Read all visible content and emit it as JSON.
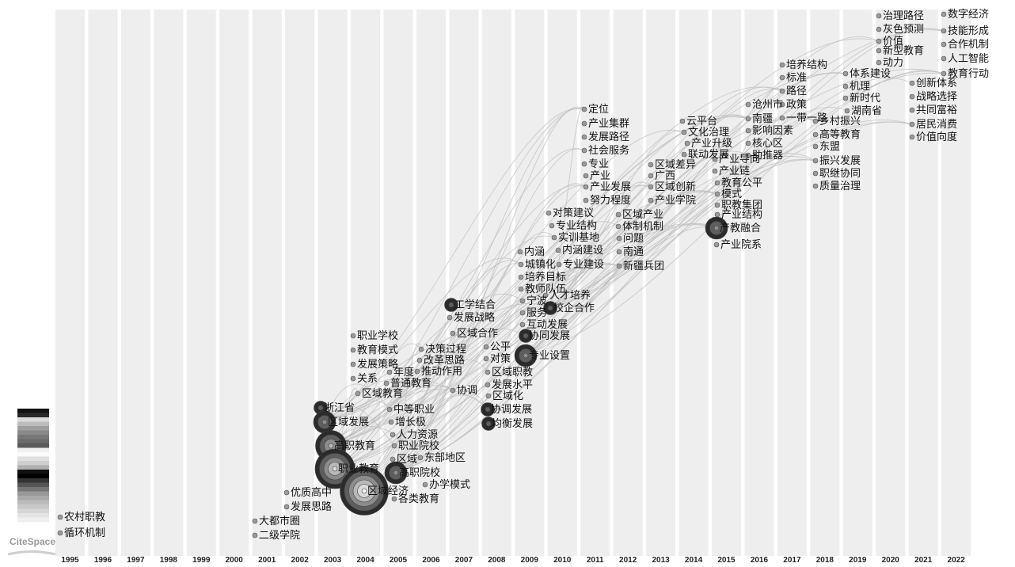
{
  "legend": {
    "brand": "CiteSpace"
  },
  "years": [
    "1995",
    "1996",
    "1997",
    "1998",
    "1999",
    "2000",
    "2001",
    "2002",
    "2003",
    "2004",
    "2005",
    "2006",
    "2007",
    "2008",
    "2009",
    "2010",
    "2011",
    "2012",
    "2013",
    "2014",
    "2015",
    "2016",
    "2017",
    "2018",
    "2019",
    "2020",
    "2021",
    "2022"
  ],
  "keywords": [
    {
      "label": "农村职教",
      "year": "1995",
      "size": 1
    },
    {
      "label": "循环机制",
      "year": "1995",
      "size": 1
    },
    {
      "label": "大都市圈",
      "year": "2001",
      "size": 1
    },
    {
      "label": "二级学院",
      "year": "2001",
      "size": 1
    },
    {
      "label": "优质高中",
      "year": "2002",
      "size": 1
    },
    {
      "label": "发展思路",
      "year": "2002",
      "size": 1
    },
    {
      "label": "浙江省",
      "year": "2003",
      "size": 2
    },
    {
      "label": "区域发展",
      "year": "2003",
      "size": 3
    },
    {
      "label": "高职教育",
      "year": "2003",
      "size": 4
    },
    {
      "label": "职业教育",
      "year": "2003",
      "size": 5
    },
    {
      "label": "区域经济",
      "year": "2004",
      "size": 6
    },
    {
      "label": "职业学校",
      "year": "2004",
      "size": 1
    },
    {
      "label": "教育模式",
      "year": "2004",
      "size": 1
    },
    {
      "label": "发展策略",
      "year": "2004",
      "size": 1
    },
    {
      "label": "关系",
      "year": "2004",
      "size": 1
    },
    {
      "label": "区域教育",
      "year": "2004",
      "size": 1
    },
    {
      "label": "年度",
      "year": "2005",
      "size": 1
    },
    {
      "label": "普通教育",
      "year": "2005",
      "size": 1
    },
    {
      "label": "中等职业",
      "year": "2005",
      "size": 1
    },
    {
      "label": "增长极",
      "year": "2005",
      "size": 1
    },
    {
      "label": "人力资源",
      "year": "2005",
      "size": 1
    },
    {
      "label": "职业院校",
      "year": "2005",
      "size": 1
    },
    {
      "label": "区域",
      "year": "2005",
      "size": 1
    },
    {
      "label": "高职院校",
      "year": "2005",
      "size": 3
    },
    {
      "label": "东部地区",
      "year": "2006",
      "size": 1
    },
    {
      "label": "办学模式",
      "year": "2006",
      "size": 1
    },
    {
      "label": "各类教育",
      "year": "2006",
      "size": 1
    },
    {
      "label": "决策过程",
      "year": "2006",
      "size": 1
    },
    {
      "label": "改革思路",
      "year": "2006",
      "size": 1
    },
    {
      "label": "推动作用",
      "year": "2006",
      "size": 1
    },
    {
      "label": "工学结合",
      "year": "2007",
      "size": 2
    },
    {
      "label": "发展战略",
      "year": "2007",
      "size": 1
    },
    {
      "label": "区域合作",
      "year": "2007",
      "size": 1
    },
    {
      "label": "协调",
      "year": "2007",
      "size": 1
    },
    {
      "label": "公平",
      "year": "2008",
      "size": 1
    },
    {
      "label": "对策",
      "year": "2008",
      "size": 1
    },
    {
      "label": "区域职教",
      "year": "2008",
      "size": 1
    },
    {
      "label": "发展水平",
      "year": "2008",
      "size": 1
    },
    {
      "label": "区域化",
      "year": "2008",
      "size": 1
    },
    {
      "label": "协调发展",
      "year": "2008",
      "size": 2
    },
    {
      "label": "均衡发展",
      "year": "2008",
      "size": 2
    },
    {
      "label": "内涵",
      "year": "2009",
      "size": 1
    },
    {
      "label": "城镇化",
      "year": "2009",
      "size": 1
    },
    {
      "label": "培养目标",
      "year": "2009",
      "size": 1
    },
    {
      "label": "教师队伍",
      "year": "2009",
      "size": 1
    },
    {
      "label": "宁波",
      "year": "2009",
      "size": 1
    },
    {
      "label": "服务",
      "year": "2009",
      "size": 1
    },
    {
      "label": "互动发展",
      "year": "2009",
      "size": 1
    },
    {
      "label": "协同发展",
      "year": "2009",
      "size": 2
    },
    {
      "label": "专业设置",
      "year": "2009",
      "size": 3
    },
    {
      "label": "人才培养",
      "year": "2010",
      "size": 1
    },
    {
      "label": "校企合作",
      "year": "2010",
      "size": 2
    },
    {
      "label": "对策建议",
      "year": "2010",
      "size": 1
    },
    {
      "label": "专业结构",
      "year": "2010",
      "size": 1
    },
    {
      "label": "实训基地",
      "year": "2010",
      "size": 1
    },
    {
      "label": "内涵建设",
      "year": "2010",
      "size": 1
    },
    {
      "label": "专业建设",
      "year": "2010",
      "size": 1
    },
    {
      "label": "定位",
      "year": "2011",
      "size": 1
    },
    {
      "label": "产业集群",
      "year": "2011",
      "size": 1
    },
    {
      "label": "发展路径",
      "year": "2011",
      "size": 1
    },
    {
      "label": "社会服务",
      "year": "2011",
      "size": 1
    },
    {
      "label": "专业",
      "year": "2011",
      "size": 1
    },
    {
      "label": "产业",
      "year": "2011",
      "size": 1
    },
    {
      "label": "产业发展",
      "year": "2011",
      "size": 1
    },
    {
      "label": "努力程度",
      "year": "2011",
      "size": 1
    },
    {
      "label": "区域产业",
      "year": "2012",
      "size": 1
    },
    {
      "label": "体制机制",
      "year": "2012",
      "size": 1
    },
    {
      "label": "问题",
      "year": "2012",
      "size": 1
    },
    {
      "label": "南通",
      "year": "2012",
      "size": 1
    },
    {
      "label": "新疆兵团",
      "year": "2012",
      "size": 1
    },
    {
      "label": "区域差异",
      "year": "2013",
      "size": 1
    },
    {
      "label": "广西",
      "year": "2013",
      "size": 1
    },
    {
      "label": "区域创新",
      "year": "2013",
      "size": 1
    },
    {
      "label": "产业学院",
      "year": "2013",
      "size": 1
    },
    {
      "label": "云平台",
      "year": "2014",
      "size": 1
    },
    {
      "label": "文化治理",
      "year": "2014",
      "size": 1
    },
    {
      "label": "产业升级",
      "year": "2014",
      "size": 1
    },
    {
      "label": "联动发展",
      "year": "2014",
      "size": 1
    },
    {
      "label": "产业导向",
      "year": "2015",
      "size": 1
    },
    {
      "label": "产业链",
      "year": "2015",
      "size": 1
    },
    {
      "label": "教育公平",
      "year": "2015",
      "size": 1
    },
    {
      "label": "模式",
      "year": "2015",
      "size": 1
    },
    {
      "label": "职教集团",
      "year": "2015",
      "size": 1
    },
    {
      "label": "产业结构",
      "year": "2015",
      "size": 1
    },
    {
      "label": "产教融合",
      "year": "2015",
      "size": 3
    },
    {
      "label": "产业院系",
      "year": "2015",
      "size": 1
    },
    {
      "label": "沧州市",
      "year": "2016",
      "size": 1
    },
    {
      "label": "南疆",
      "year": "2016",
      "size": 1
    },
    {
      "label": "影响因素",
      "year": "2016",
      "size": 1
    },
    {
      "label": "核心区",
      "year": "2016",
      "size": 1
    },
    {
      "label": "助推器",
      "year": "2016",
      "size": 1
    },
    {
      "label": "培养结构",
      "year": "2017",
      "size": 1
    },
    {
      "label": "标准",
      "year": "2017",
      "size": 1
    },
    {
      "label": "路径",
      "year": "2017",
      "size": 1
    },
    {
      "label": "政策",
      "year": "2017",
      "size": 1
    },
    {
      "label": "一带一路",
      "year": "2017",
      "size": 1
    },
    {
      "label": "乡村振兴",
      "year": "2018",
      "size": 1
    },
    {
      "label": "高等教育",
      "year": "2018",
      "size": 1
    },
    {
      "label": "东盟",
      "year": "2018",
      "size": 1
    },
    {
      "label": "振兴发展",
      "year": "2018",
      "size": 1
    },
    {
      "label": "职继协同",
      "year": "2018",
      "size": 1
    },
    {
      "label": "质量治理",
      "year": "2018",
      "size": 1
    },
    {
      "label": "体系建设",
      "year": "2019",
      "size": 1
    },
    {
      "label": "机理",
      "year": "2019",
      "size": 1
    },
    {
      "label": "新时代",
      "year": "2019",
      "size": 1
    },
    {
      "label": "湖南省",
      "year": "2019",
      "size": 1
    },
    {
      "label": "治理路径",
      "year": "2020",
      "size": 1
    },
    {
      "label": "灰色预测",
      "year": "2020",
      "size": 1
    },
    {
      "label": "价值",
      "year": "2020",
      "size": 1
    },
    {
      "label": "新型教育",
      "year": "2020",
      "size": 1
    },
    {
      "label": "动力",
      "year": "2020",
      "size": 1
    },
    {
      "label": "创新体系",
      "year": "2021",
      "size": 1
    },
    {
      "label": "战略选择",
      "year": "2021",
      "size": 1
    },
    {
      "label": "共同富裕",
      "year": "2021",
      "size": 1
    },
    {
      "label": "居民消费",
      "year": "2021",
      "size": 1
    },
    {
      "label": "价值向度",
      "year": "2021",
      "size": 1
    },
    {
      "label": "数字经济",
      "year": "2022",
      "size": 1
    },
    {
      "label": "技能形成",
      "year": "2022",
      "size": 1
    },
    {
      "label": "合作机制",
      "year": "2022",
      "size": 1
    },
    {
      "label": "人工智能",
      "year": "2022",
      "size": 1
    },
    {
      "label": "教育行动",
      "year": "2022",
      "size": 1
    }
  ]
}
